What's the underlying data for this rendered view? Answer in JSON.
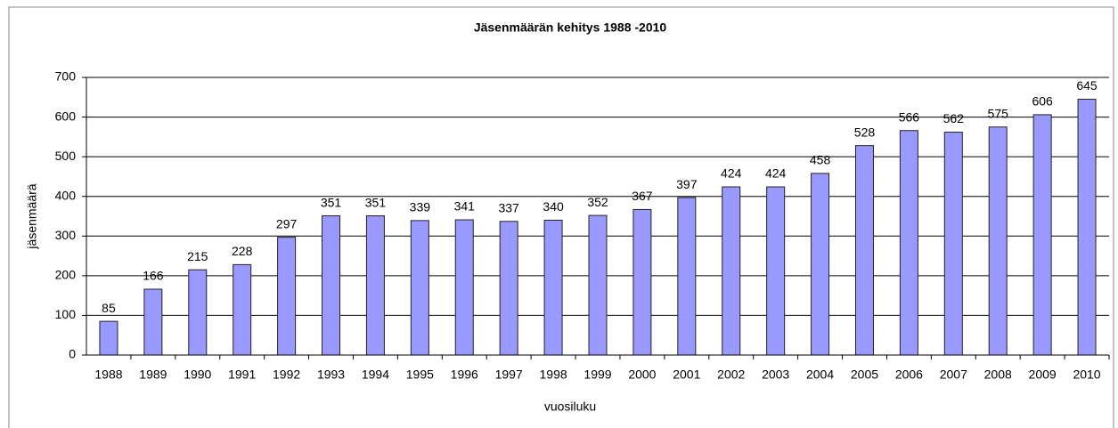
{
  "chart_data": {
    "type": "bar",
    "title": "Jäsenmäärän kehitys 1988 -2010",
    "x_label": "vuosiluku",
    "y_label": "jäsenmäärä",
    "categories": [
      "1988",
      "1989",
      "1990",
      "1991",
      "1992",
      "1993",
      "1994",
      "1995",
      "1996",
      "1997",
      "1998",
      "1999",
      "2000",
      "2001",
      "2002",
      "2003",
      "2004",
      "2005",
      "2006",
      "2007",
      "2008",
      "2009",
      "2010"
    ],
    "values": [
      85,
      166,
      215,
      228,
      297,
      351,
      351,
      339,
      341,
      337,
      340,
      352,
      367,
      397,
      424,
      424,
      458,
      528,
      566,
      562,
      575,
      606,
      645
    ],
    "color": "#9999ff",
    "ylim": [
      0,
      700
    ],
    "yticks": [
      0,
      100,
      200,
      300,
      400,
      500,
      600,
      700
    ],
    "grid": true
  }
}
